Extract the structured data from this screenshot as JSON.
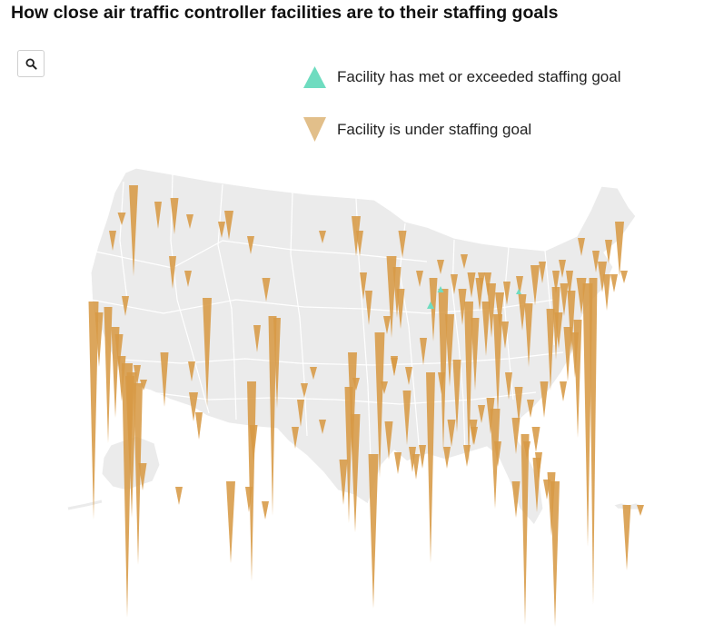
{
  "title": "How close air traffic controller facilities are to their staffing goals",
  "search": {
    "icon": "search-icon"
  },
  "legend": {
    "met_label": "Facility has met or exceeded staffing goal",
    "under_label": "Facility is under staffing goal",
    "met_color": "#6fdcc0",
    "under_color": "#d79a45",
    "under_legend_color": "#e2bf8a"
  },
  "map": {
    "region": "contiguous United States, Alaska inset, Hawaii inset",
    "land_color": "#ebebeb",
    "border_color": "#ffffff"
  }
}
